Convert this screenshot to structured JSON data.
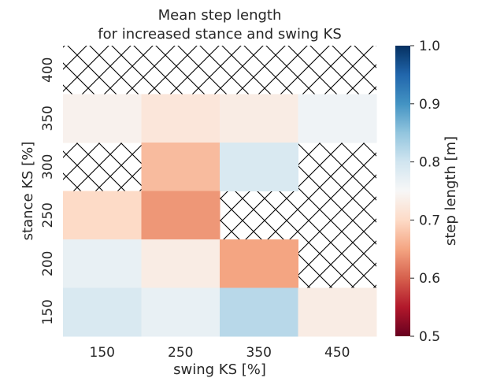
{
  "chart_data": {
    "type": "heatmap",
    "title": [
      "Mean step length",
      "for increased stance and swing KS"
    ],
    "xlabel": "swing KS [%]",
    "ylabel": "stance KS [%]",
    "x_ticks": [
      "150",
      "250",
      "350",
      "450"
    ],
    "y_ticks_top_to_bottom": [
      "400",
      "350",
      "300",
      "250",
      "200",
      "150"
    ],
    "colorbar": {
      "label": "step length [m]",
      "colormap": "RdBu",
      "range": [
        0.5,
        1.0
      ],
      "ticks": [
        "0.5",
        "0.6",
        "0.7",
        "0.8",
        "0.9",
        "1.0"
      ]
    },
    "missing_style": "cross-hatched",
    "values_top_to_bottom": [
      [
        null,
        null,
        null,
        null
      ],
      [
        0.74,
        0.72,
        0.73,
        0.76
      ],
      [
        null,
        0.67,
        0.79,
        null
      ],
      [
        0.7,
        0.64,
        null,
        null
      ],
      [
        0.77,
        0.73,
        0.65,
        null
      ],
      [
        0.79,
        0.77,
        0.82,
        0.73
      ]
    ]
  }
}
